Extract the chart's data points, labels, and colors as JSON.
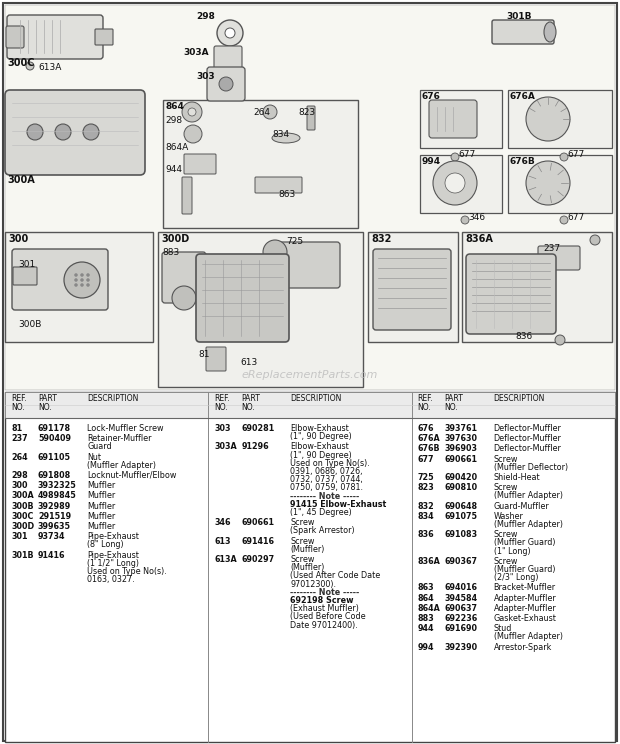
{
  "bg_color": "#ffffff",
  "watermark": "eReplacementParts.com",
  "col1_entries": [
    {
      "ref": "81",
      "part": "691178",
      "desc": [
        "Lock-Muffler Screw"
      ]
    },
    {
      "ref": "237",
      "part": "590409",
      "desc": [
        "Retainer-Muffler",
        "Guard"
      ]
    },
    {
      "ref": "264",
      "part": "691105",
      "desc": [
        "Nut",
        "(Muffler Adapter)"
      ]
    },
    {
      "ref": "298",
      "part": "691808",
      "desc": [
        "Locknut-Muffler/Elbow"
      ]
    },
    {
      "ref": "300",
      "part": "3932325",
      "desc": [
        "Muffler"
      ]
    },
    {
      "ref": "300A",
      "part": "4989845",
      "desc": [
        "Muffler"
      ]
    },
    {
      "ref": "300B",
      "part": "392989",
      "desc": [
        "Muffler"
      ]
    },
    {
      "ref": "300C",
      "part": "291519",
      "desc": [
        "Muffler"
      ]
    },
    {
      "ref": "300D",
      "part": "399635",
      "desc": [
        "Muffler"
      ]
    },
    {
      "ref": "301",
      "part": "93734",
      "desc": [
        "Pipe-Exhaust",
        "(8\" Long)"
      ]
    },
    {
      "ref": "301B",
      "part": "91416",
      "desc": [
        "Pipe-Exhaust",
        "(1 1/2\" Long)",
        "Used on Type No(s).",
        "0163, 0327."
      ]
    }
  ],
  "col2_entries": [
    {
      "ref": "303",
      "part": "690281",
      "desc": [
        "Elbow-Exhaust",
        "(1\", 90 Degree)"
      ]
    },
    {
      "ref": "303A",
      "part": "91296",
      "desc": [
        "Elbow-Exhaust",
        "(1\", 90 Degree)",
        "Used on Type No(s).",
        "0391, 0686, 0726,",
        "0732, 0737, 0744,",
        "0750, 0759, 0781.",
        "-------- Note -----",
        "91415 Elbow-Exhaust",
        "(1\", 45 Degree)"
      ]
    },
    {
      "ref": "346",
      "part": "690661",
      "desc": [
        "Screw",
        "(Spark Arrestor)"
      ]
    },
    {
      "ref": "613",
      "part": "691416",
      "desc": [
        "Screw",
        "(Muffler)"
      ]
    },
    {
      "ref": "613A",
      "part": "690297",
      "desc": [
        "Screw",
        "(Muffler)",
        "(Used After Code Date",
        "97012300).",
        "-------- Note -----",
        "692198 Screw",
        "(Exhaust Muffler)",
        "(Used Before Code",
        "Date 97012400)."
      ]
    }
  ],
  "col3_entries": [
    {
      "ref": "676",
      "part": "393761",
      "desc": [
        "Deflector-Muffler"
      ]
    },
    {
      "ref": "676A",
      "part": "397630",
      "desc": [
        "Deflector-Muffler"
      ]
    },
    {
      "ref": "676B",
      "part": "396903",
      "desc": [
        "Deflector-Muffler"
      ]
    },
    {
      "ref": "677",
      "part": "690661",
      "desc": [
        "Screw",
        "(Muffler Deflector)"
      ]
    },
    {
      "ref": "725",
      "part": "690420",
      "desc": [
        "Shield-Heat"
      ]
    },
    {
      "ref": "823",
      "part": "690810",
      "desc": [
        "Screw",
        "(Muffler Adapter)"
      ]
    },
    {
      "ref": "832",
      "part": "690648",
      "desc": [
        "Guard-Muffler"
      ]
    },
    {
      "ref": "834",
      "part": "691075",
      "desc": [
        "Washer",
        "(Muffler Adapter)"
      ]
    },
    {
      "ref": "836",
      "part": "691083",
      "desc": [
        "Screw",
        "(Muffler Guard)",
        "(1\" Long)"
      ]
    },
    {
      "ref": "836A",
      "part": "690367",
      "desc": [
        "Screw",
        "(Muffler Guard)",
        "(2/3\" Long)"
      ]
    },
    {
      "ref": "863",
      "part": "694016",
      "desc": [
        "Bracket-Muffler"
      ]
    },
    {
      "ref": "864",
      "part": "394584",
      "desc": [
        "Adapter-Muffler"
      ]
    },
    {
      "ref": "864A",
      "part": "690637",
      "desc": [
        "Adapter-Muffler"
      ]
    },
    {
      "ref": "883",
      "part": "692236",
      "desc": [
        "Gasket-Exhaust"
      ]
    },
    {
      "ref": "944",
      "part": "691690",
      "desc": [
        "Stud",
        "(Muffler Adapter)"
      ]
    },
    {
      "ref": "994",
      "part": "392390",
      "desc": [
        "Arrestor-Spark"
      ]
    }
  ]
}
